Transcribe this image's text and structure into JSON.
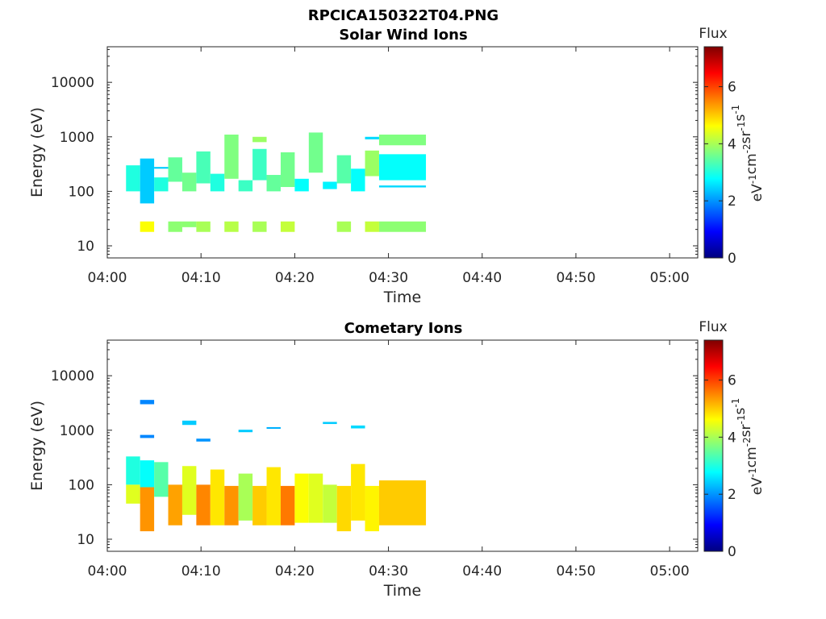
{
  "figure": {
    "title": "RPCICA150322T04.PNG"
  },
  "colorbar": {
    "label": "Flux",
    "units_base": [
      "eV",
      "cm",
      "sr",
      "s"
    ],
    "units_exp": [
      "-1",
      "-2",
      "-1",
      "-1"
    ],
    "range": [
      0,
      7.4
    ],
    "ticks": [
      "0",
      "2",
      "4",
      "6"
    ],
    "colormap": "jet"
  },
  "chart_data": [
    {
      "type": "heatmap",
      "title": "Solar Wind Ions",
      "xlabel": "Time",
      "ylabel": "Energy (eV)",
      "x_ticks": [
        "04:00",
        "04:10",
        "04:20",
        "04:30",
        "04:40",
        "04:50",
        "05:00"
      ],
      "xlim_minutes_after_0400": [
        0,
        63
      ],
      "y_ticks": [
        "10",
        "100",
        "1000",
        "10000"
      ],
      "ylim": [
        6,
        45000
      ],
      "yscale": "log",
      "grid": false,
      "cells": [
        {
          "t0": "04:02",
          "t1": "04:03.5",
          "e0": 100,
          "e1": 300,
          "flux": 3.0
        },
        {
          "t0": "04:03.5",
          "t1": "04:05",
          "e0": 60,
          "e1": 400,
          "flux": 2.4
        },
        {
          "t0": "04:03.5",
          "t1": "04:05",
          "e0": 18,
          "e1": 28,
          "flux": 4.6
        },
        {
          "t0": "04:05",
          "t1": "04:06.5",
          "e0": 100,
          "e1": 180,
          "flux": 3.0
        },
        {
          "t0": "04:05",
          "t1": "04:06.5",
          "e0": 260,
          "e1": 280,
          "flux": 2.4
        },
        {
          "t0": "04:06.5",
          "t1": "04:08",
          "e0": 150,
          "e1": 420,
          "flux": 3.5
        },
        {
          "t0": "04:06.5",
          "t1": "04:08",
          "e0": 18,
          "e1": 28,
          "flux": 3.8
        },
        {
          "t0": "04:08",
          "t1": "04:09.5",
          "e0": 100,
          "e1": 220,
          "flux": 3.6
        },
        {
          "t0": "04:08",
          "t1": "04:09.5",
          "e0": 22,
          "e1": 28,
          "flux": 3.8
        },
        {
          "t0": "04:09.5",
          "t1": "04:11",
          "e0": 140,
          "e1": 540,
          "flux": 3.3
        },
        {
          "t0": "04:09.5",
          "t1": "04:11",
          "e0": 18,
          "e1": 28,
          "flux": 4.0
        },
        {
          "t0": "04:11",
          "t1": "04:12.5",
          "e0": 100,
          "e1": 210,
          "flux": 3.0
        },
        {
          "t0": "04:12.5",
          "t1": "04:14",
          "e0": 170,
          "e1": 1100,
          "flux": 3.7
        },
        {
          "t0": "04:12.5",
          "t1": "04:14",
          "e0": 18,
          "e1": 28,
          "flux": 4.1
        },
        {
          "t0": "04:14",
          "t1": "04:15.5",
          "e0": 100,
          "e1": 160,
          "flux": 3.2
        },
        {
          "t0": "04:15.5",
          "t1": "04:17",
          "e0": 160,
          "e1": 600,
          "flux": 3.2
        },
        {
          "t0": "04:15.5",
          "t1": "04:17",
          "e0": 800,
          "e1": 1000,
          "flux": 3.9
        },
        {
          "t0": "04:15.5",
          "t1": "04:17",
          "e0": 18,
          "e1": 28,
          "flux": 4.0
        },
        {
          "t0": "04:17",
          "t1": "04:18.5",
          "e0": 100,
          "e1": 200,
          "flux": 3.5
        },
        {
          "t0": "04:18.5",
          "t1": "04:20",
          "e0": 120,
          "e1": 520,
          "flux": 3.6
        },
        {
          "t0": "04:18.5",
          "t1": "04:20",
          "e0": 18,
          "e1": 28,
          "flux": 4.2
        },
        {
          "t0": "04:20",
          "t1": "04:21.5",
          "e0": 100,
          "e1": 170,
          "flux": 2.8
        },
        {
          "t0": "04:21.5",
          "t1": "04:23",
          "e0": 220,
          "e1": 1200,
          "flux": 3.6
        },
        {
          "t0": "04:23",
          "t1": "04:24.5",
          "e0": 110,
          "e1": 150,
          "flux": 2.7
        },
        {
          "t0": "04:24.5",
          "t1": "04:26",
          "e0": 140,
          "e1": 460,
          "flux": 3.4
        },
        {
          "t0": "04:24.5",
          "t1": "04:26",
          "e0": 18,
          "e1": 28,
          "flux": 4.0
        },
        {
          "t0": "04:26",
          "t1": "04:27.5",
          "e0": 100,
          "e1": 260,
          "flux": 2.8
        },
        {
          "t0": "04:27.5",
          "t1": "04:29",
          "e0": 190,
          "e1": 560,
          "flux": 3.9
        },
        {
          "t0": "04:27.5",
          "t1": "04:29",
          "e0": 900,
          "e1": 1000,
          "flux": 2.5
        },
        {
          "t0": "04:27.5",
          "t1": "04:29",
          "e0": 18,
          "e1": 28,
          "flux": 4.2
        },
        {
          "t0": "04:29",
          "t1": "04:34",
          "e0": 160,
          "e1": 480,
          "flux": 2.8
        },
        {
          "t0": "04:29",
          "t1": "04:34",
          "e0": 700,
          "e1": 1100,
          "flux": 3.7
        },
        {
          "t0": "04:29",
          "t1": "04:34",
          "e0": 118,
          "e1": 128,
          "flux": 2.5
        },
        {
          "t0": "04:29",
          "t1": "04:34",
          "e0": 18,
          "e1": 28,
          "flux": 3.8
        }
      ]
    },
    {
      "type": "heatmap",
      "title": "Cometary Ions",
      "xlabel": "Time",
      "ylabel": "Energy (eV)",
      "x_ticks": [
        "04:00",
        "04:10",
        "04:20",
        "04:30",
        "04:40",
        "04:50",
        "05:00"
      ],
      "xlim_minutes_after_0400": [
        0,
        63
      ],
      "y_ticks": [
        "10",
        "100",
        "1000",
        "10000"
      ],
      "ylim": [
        6,
        45000
      ],
      "yscale": "log",
      "grid": false,
      "cells": [
        {
          "t0": "04:02",
          "t1": "04:03.5",
          "e0": 100,
          "e1": 330,
          "flux": 3.0
        },
        {
          "t0": "04:02",
          "t1": "04:03.5",
          "e0": 45,
          "e1": 100,
          "flux": 4.4
        },
        {
          "t0": "04:03.5",
          "t1": "04:05",
          "e0": 90,
          "e1": 280,
          "flux": 2.8
        },
        {
          "t0": "04:03.5",
          "t1": "04:05",
          "e0": 14,
          "e1": 90,
          "flux": 5.4
        },
        {
          "t0": "04:03.5",
          "t1": "04:05",
          "e0": 3000,
          "e1": 3600,
          "flux": 1.9
        },
        {
          "t0": "04:03.5",
          "t1": "04:05",
          "e0": 720,
          "e1": 820,
          "flux": 1.9
        },
        {
          "t0": "04:05",
          "t1": "04:06.5",
          "e0": 60,
          "e1": 260,
          "flux": 3.4
        },
        {
          "t0": "04:06.5",
          "t1": "04:08",
          "e0": 18,
          "e1": 100,
          "flux": 5.3
        },
        {
          "t0": "04:08",
          "t1": "04:09.5",
          "e0": 28,
          "e1": 220,
          "flux": 4.4
        },
        {
          "t0": "04:08",
          "t1": "04:09.5",
          "e0": 1250,
          "e1": 1500,
          "flux": 2.4
        },
        {
          "t0": "04:09.5",
          "t1": "04:11",
          "e0": 18,
          "e1": 100,
          "flux": 5.5
        },
        {
          "t0": "04:09.5",
          "t1": "04:11",
          "e0": 620,
          "e1": 700,
          "flux": 2.0
        },
        {
          "t0": "04:11",
          "t1": "04:12.5",
          "e0": 18,
          "e1": 190,
          "flux": 4.8
        },
        {
          "t0": "04:12.5",
          "t1": "04:14",
          "e0": 18,
          "e1": 95,
          "flux": 5.4
        },
        {
          "t0": "04:14",
          "t1": "04:15.5",
          "e0": 22,
          "e1": 160,
          "flux": 4.0
        },
        {
          "t0": "04:14",
          "t1": "04:15.5",
          "e0": 920,
          "e1": 1020,
          "flux": 2.4
        },
        {
          "t0": "04:15.5",
          "t1": "04:17",
          "e0": 18,
          "e1": 95,
          "flux": 5.0
        },
        {
          "t0": "04:17",
          "t1": "04:18.5",
          "e0": 18,
          "e1": 210,
          "flux": 4.8
        },
        {
          "t0": "04:17",
          "t1": "04:18.5",
          "e0": 1060,
          "e1": 1140,
          "flux": 2.2
        },
        {
          "t0": "04:18.5",
          "t1": "04:20",
          "e0": 18,
          "e1": 95,
          "flux": 5.6
        },
        {
          "t0": "04:20",
          "t1": "04:21.5",
          "e0": 20,
          "e1": 160,
          "flux": 4.6
        },
        {
          "t0": "04:21.5",
          "t1": "04:23",
          "e0": 20,
          "e1": 160,
          "flux": 4.4
        },
        {
          "t0": "04:23",
          "t1": "04:24.5",
          "e0": 20,
          "e1": 100,
          "flux": 4.2
        },
        {
          "t0": "04:23",
          "t1": "04:24.5",
          "e0": 1300,
          "e1": 1420,
          "flux": 2.4
        },
        {
          "t0": "04:24.5",
          "t1": "04:26",
          "e0": 14,
          "e1": 95,
          "flux": 4.9
        },
        {
          "t0": "04:26",
          "t1": "04:27.5",
          "e0": 22,
          "e1": 240,
          "flux": 4.8
        },
        {
          "t0": "04:26",
          "t1": "04:27.5",
          "e0": 1080,
          "e1": 1220,
          "flux": 2.5
        },
        {
          "t0": "04:27.5",
          "t1": "04:29",
          "e0": 14,
          "e1": 95,
          "flux": 4.7
        },
        {
          "t0": "04:29",
          "t1": "04:34",
          "e0": 18,
          "e1": 120,
          "flux": 5.0
        }
      ]
    }
  ]
}
